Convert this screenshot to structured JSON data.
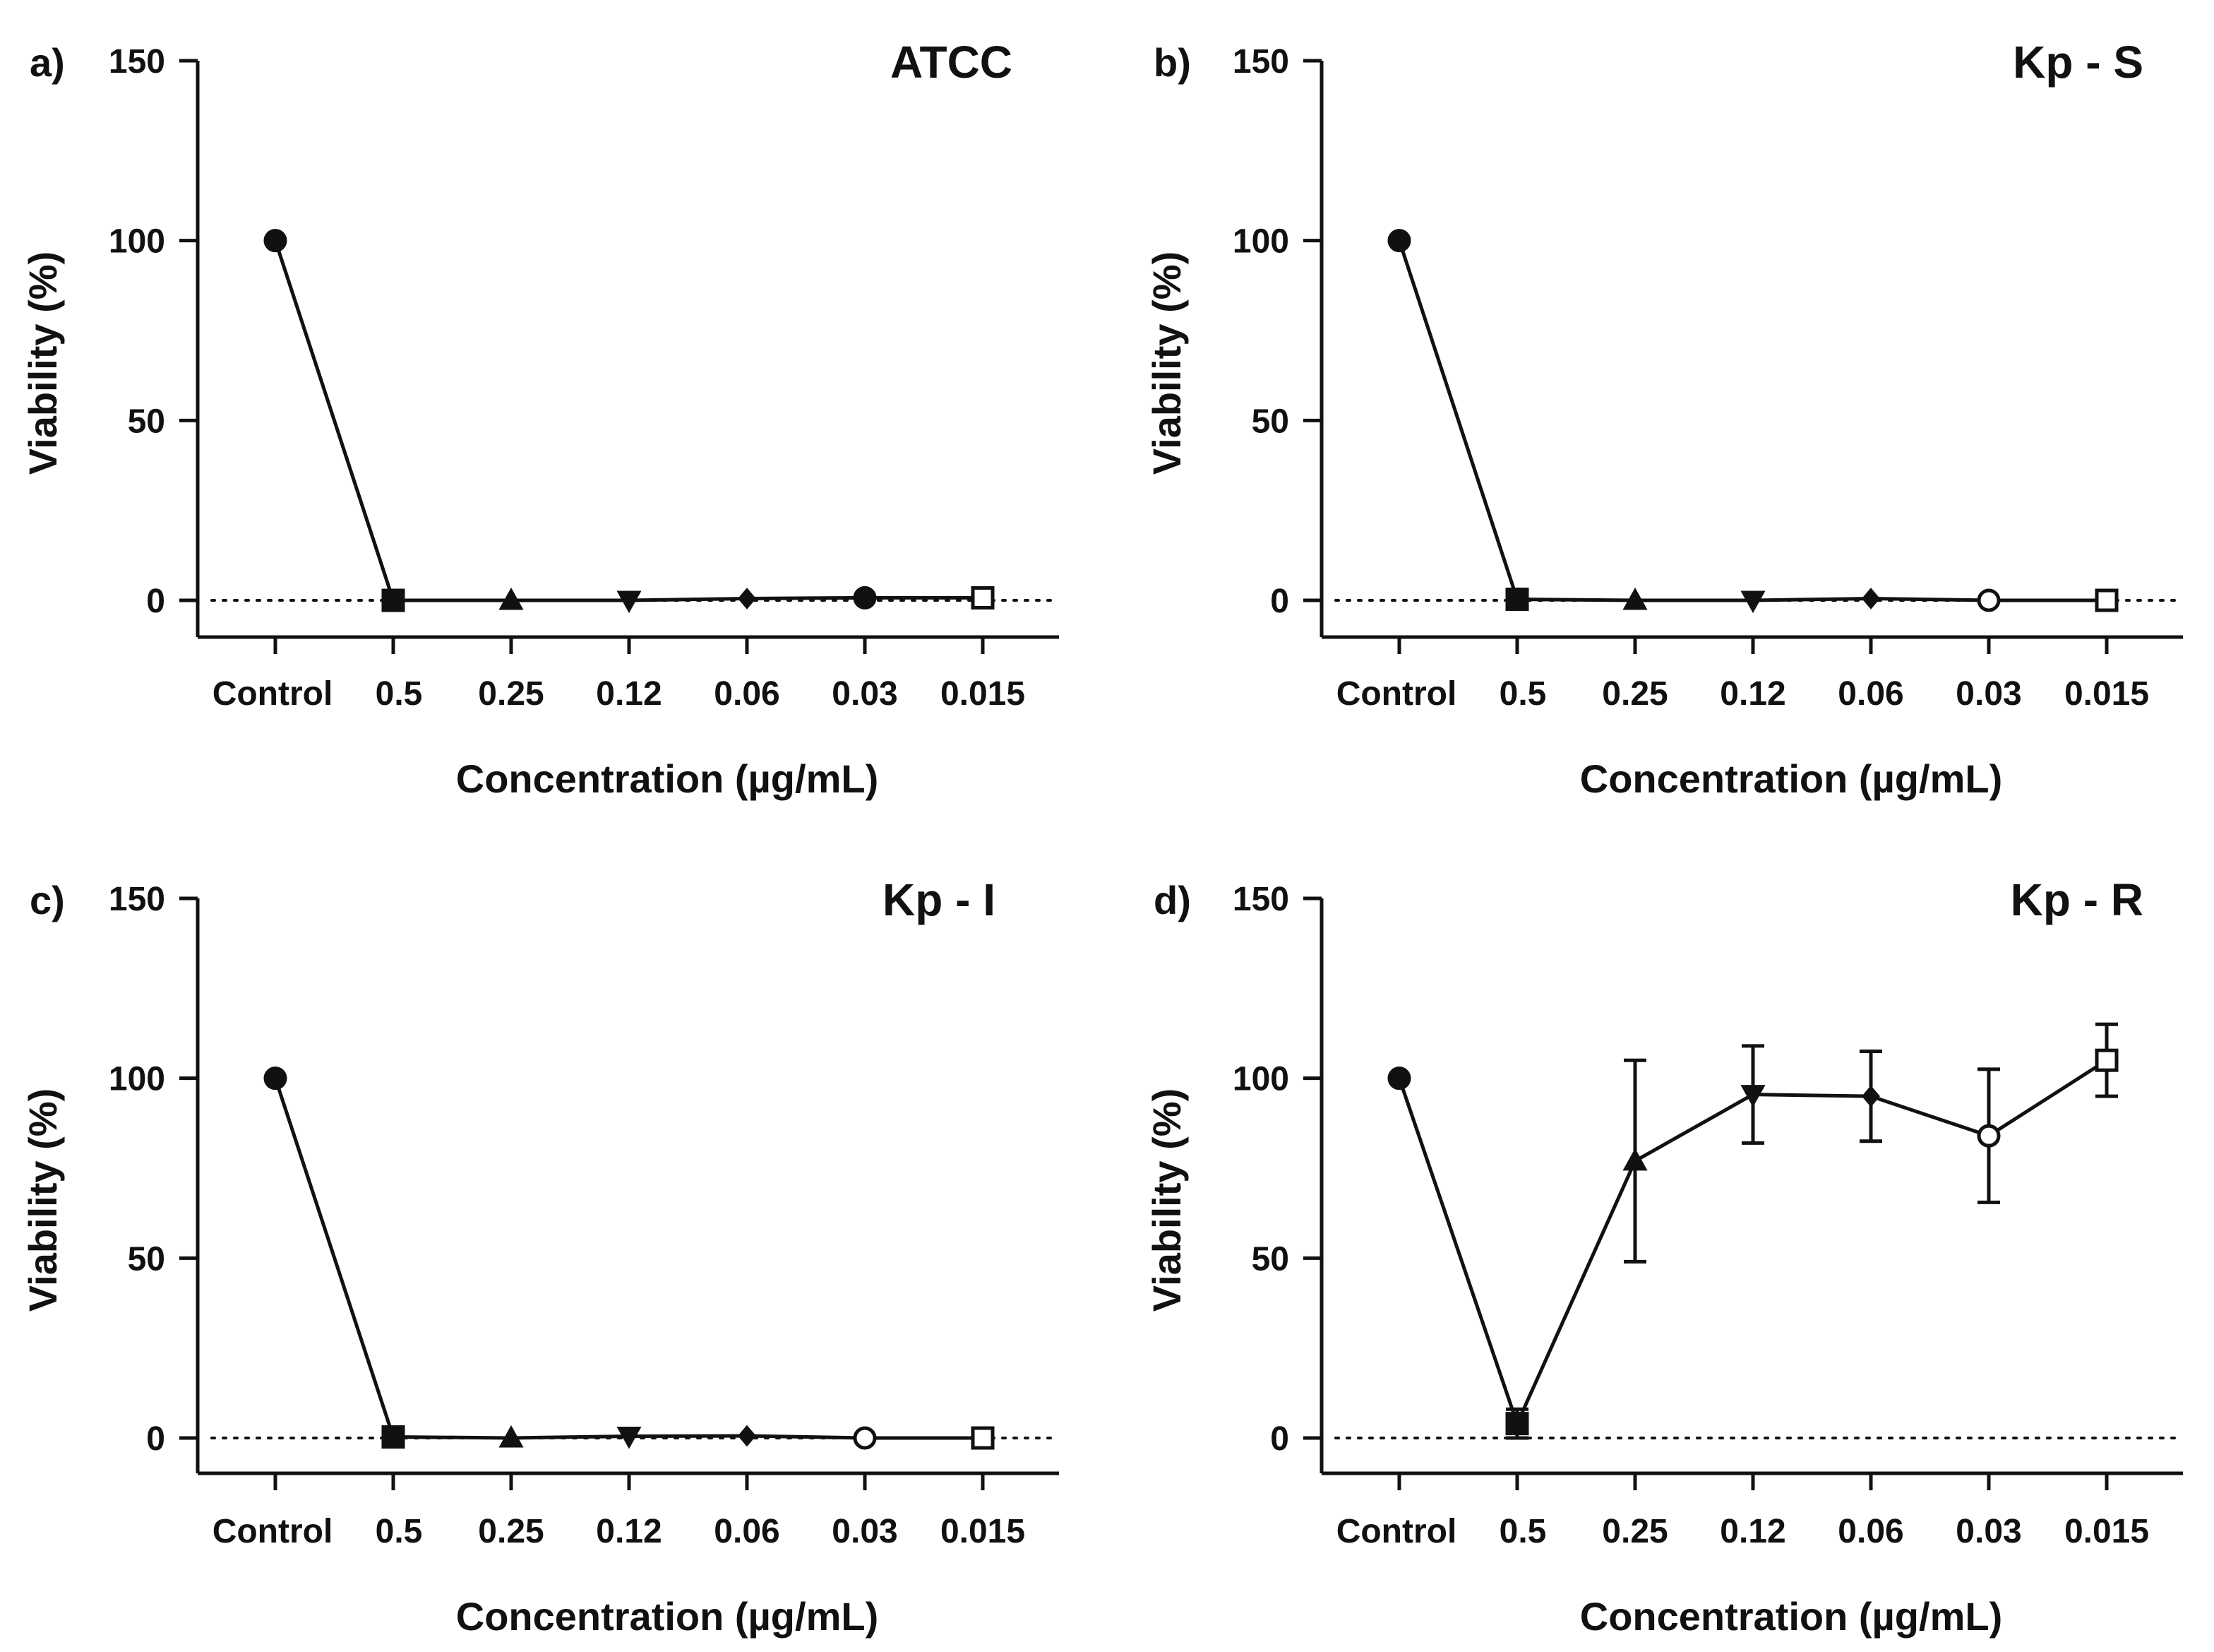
{
  "chart_data": [
    {
      "panel_label": "a)",
      "title": "ATCC",
      "type": "line",
      "xlabel": "Concentration (µg/mL)",
      "ylabel": "Viability (%)",
      "categories": [
        "Control",
        "0.5",
        "0.25",
        "0.12",
        "0.06",
        "0.03",
        "0.015"
      ],
      "yticks": [
        "0",
        "50",
        "100",
        "150"
      ],
      "ylim": [
        -10,
        150
      ],
      "reference_line": 0,
      "markers": [
        "filled-circle",
        "filled-square",
        "filled-triangle-up",
        "filled-triangle-down",
        "filled-diamond",
        "filled-circle",
        "open-square"
      ],
      "values": [
        100,
        0,
        0,
        0,
        0.5,
        0.7,
        0.7
      ],
      "errors": [
        0,
        0,
        0,
        0,
        0,
        0,
        0
      ]
    },
    {
      "panel_label": "b)",
      "title": "Kp - S",
      "type": "line",
      "xlabel": "Concentration (µg/mL)",
      "ylabel": "Viability (%)",
      "categories": [
        "Control",
        "0.5",
        "0.25",
        "0.12",
        "0.06",
        "0.03",
        "0.015"
      ],
      "yticks": [
        "0",
        "50",
        "100",
        "150"
      ],
      "ylim": [
        -10,
        150
      ],
      "reference_line": 0,
      "markers": [
        "filled-circle",
        "filled-square",
        "filled-triangle-up",
        "filled-triangle-down",
        "filled-diamond",
        "open-circle",
        "open-square"
      ],
      "values": [
        100,
        0.3,
        0,
        0,
        0.5,
        0,
        0
      ],
      "errors": [
        0,
        0,
        0,
        0,
        0,
        0,
        0
      ]
    },
    {
      "panel_label": "c)",
      "title": "Kp - I",
      "type": "line",
      "xlabel": "Concentration (µg/mL)",
      "ylabel": "Viability (%)",
      "categories": [
        "Control",
        "0.5",
        "0.25",
        "0.12",
        "0.06",
        "0.03",
        "0.015"
      ],
      "yticks": [
        "0",
        "50",
        "100",
        "150"
      ],
      "ylim": [
        -10,
        150
      ],
      "reference_line": 0,
      "markers": [
        "filled-circle",
        "filled-square",
        "filled-triangle-up",
        "filled-triangle-down",
        "filled-diamond",
        "open-circle",
        "open-square"
      ],
      "values": [
        100,
        0.3,
        0,
        0.5,
        0.6,
        0,
        0
      ],
      "errors": [
        0,
        0,
        0,
        0,
        0,
        0,
        0
      ]
    },
    {
      "panel_label": "d)",
      "title": "Kp - R",
      "type": "line",
      "xlabel": "Concentration (µg/mL)",
      "ylabel": "Viability (%)",
      "categories": [
        "Control",
        "0.5",
        "0.25",
        "0.12",
        "0.06",
        "0.03",
        "0.015"
      ],
      "yticks": [
        "0",
        "50",
        "100",
        "150"
      ],
      "ylim": [
        -10,
        150
      ],
      "reference_line": 0,
      "markers": [
        "filled-circle",
        "filled-square",
        "filled-triangle-up",
        "filled-triangle-down",
        "filled-diamond",
        "open-circle",
        "open-square"
      ],
      "values": [
        100,
        4,
        77,
        95.5,
        95,
        84,
        105
      ],
      "errors": [
        0,
        4,
        28,
        13.5,
        12.5,
        18.5,
        10
      ]
    }
  ]
}
